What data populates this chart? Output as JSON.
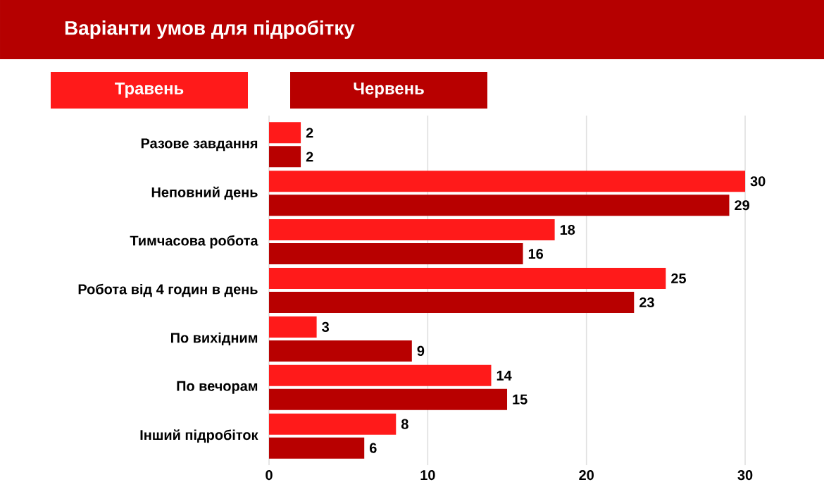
{
  "chart_data": {
    "type": "bar",
    "orientation": "horizontal",
    "title": "Варіанти умов для підробітку",
    "categories": [
      "Разове завдання",
      "Неповний день",
      "Тимчасова робота",
      "Робота від 4 годин в день",
      "По вихідним",
      "По вечорам",
      "Інший підробіток"
    ],
    "series": [
      {
        "name": "Травень",
        "color": "#ff1a1a",
        "values": [
          2,
          30,
          18,
          25,
          3,
          14,
          8
        ]
      },
      {
        "name": "Червень",
        "color": "#b80000",
        "values": [
          2,
          29,
          16,
          23,
          9,
          15,
          6
        ]
      }
    ],
    "xlim": [
      0,
      30
    ],
    "xticks": [
      0,
      10,
      20,
      30
    ],
    "grid": "x",
    "legend": "top left",
    "data_labels": true
  }
}
